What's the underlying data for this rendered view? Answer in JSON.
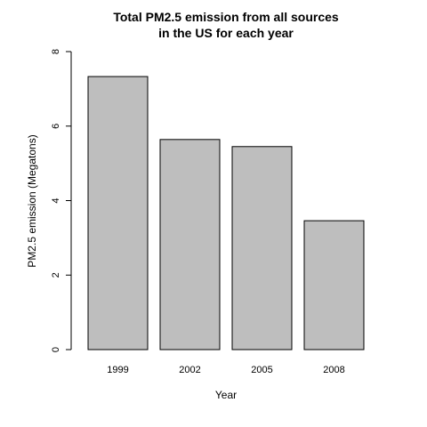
{
  "chart_data": {
    "type": "bar",
    "title_lines": [
      "Total PM2.5 emission from all sources",
      "in the US for each year"
    ],
    "xlabel": "Year",
    "ylabel": "PM2.5 emission (Megatons)",
    "categories": [
      "1999",
      "2002",
      "2005",
      "2008"
    ],
    "values": [
      7.33,
      5.64,
      5.45,
      3.46
    ],
    "ylim": [
      0,
      8
    ],
    "yticks": [
      0,
      2,
      4,
      6,
      8
    ],
    "ytick_labels": [
      "0",
      "2",
      "4",
      "6",
      "8"
    ],
    "bar_color": "#bebebe",
    "grid": false,
    "legend": "none"
  }
}
